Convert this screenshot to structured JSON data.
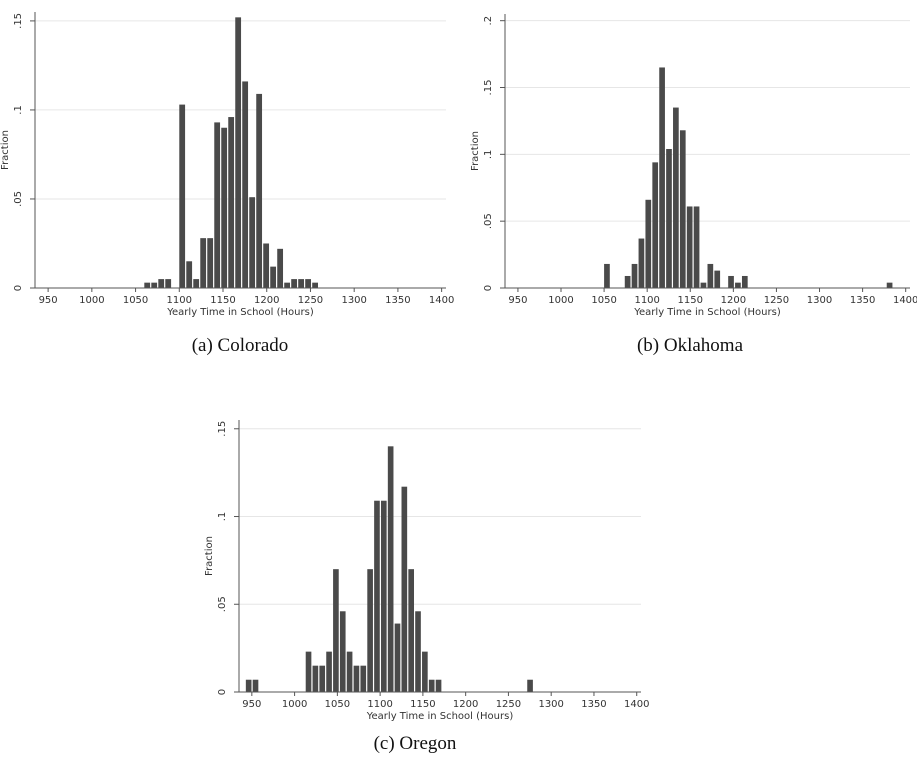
{
  "colors": {
    "bar": "#4a4a4a",
    "grid": "#e6e6e6",
    "axis": "#555555",
    "text": "#333333"
  },
  "chart_data": [
    {
      "type": "bar",
      "caption": "(a) Colorado",
      "xlabel": "Yearly Time in School (Hours)",
      "ylabel": "Fraction",
      "xlim": [
        935,
        1405
      ],
      "ylim": [
        0,
        0.155
      ],
      "xticks": [
        "950",
        "1000",
        "1050",
        "1100",
        "1150",
        "1200",
        "1250",
        "1300",
        "1350",
        "1400"
      ],
      "yticks": [
        "0",
        ".05",
        ".1",
        ".15"
      ],
      "grid": true,
      "bin_width": 8,
      "bins": [
        [
          1060,
          0.003
        ],
        [
          1068,
          0.003
        ],
        [
          1076,
          0.005
        ],
        [
          1084,
          0.005
        ],
        [
          1100,
          0.103
        ],
        [
          1108,
          0.015
        ],
        [
          1116,
          0.005
        ],
        [
          1124,
          0.028
        ],
        [
          1132,
          0.028
        ],
        [
          1140,
          0.093
        ],
        [
          1148,
          0.09
        ],
        [
          1156,
          0.096
        ],
        [
          1164,
          0.152
        ],
        [
          1172,
          0.116
        ],
        [
          1180,
          0.051
        ],
        [
          1188,
          0.109
        ],
        [
          1196,
          0.025
        ],
        [
          1204,
          0.012
        ],
        [
          1212,
          0.022
        ],
        [
          1220,
          0.003
        ],
        [
          1228,
          0.005
        ],
        [
          1236,
          0.005
        ],
        [
          1244,
          0.005
        ],
        [
          1252,
          0.003
        ]
      ]
    },
    {
      "type": "bar",
      "caption": "(b) Oklahoma",
      "xlabel": "Yearly Time in School (Hours)",
      "ylabel": "Fraction",
      "xlim": [
        935,
        1405
      ],
      "ylim": [
        0,
        0.205
      ],
      "xticks": [
        "950",
        "1000",
        "1050",
        "1100",
        "1150",
        "1200",
        "1250",
        "1300",
        "1350",
        "1400"
      ],
      "yticks": [
        "0",
        ".05",
        ".1",
        ".15",
        ".2"
      ],
      "grid": true,
      "bin_width": 8,
      "bins": [
        [
          1050,
          0.018
        ],
        [
          1074,
          0.009
        ],
        [
          1082,
          0.018
        ],
        [
          1090,
          0.037
        ],
        [
          1098,
          0.066
        ],
        [
          1106,
          0.094
        ],
        [
          1114,
          0.165
        ],
        [
          1122,
          0.104
        ],
        [
          1130,
          0.135
        ],
        [
          1138,
          0.118
        ],
        [
          1146,
          0.061
        ],
        [
          1154,
          0.061
        ],
        [
          1162,
          0.004
        ],
        [
          1170,
          0.018
        ],
        [
          1178,
          0.013
        ],
        [
          1194,
          0.009
        ],
        [
          1202,
          0.004
        ],
        [
          1210,
          0.009
        ],
        [
          1378,
          0.004
        ]
      ]
    },
    {
      "type": "bar",
      "caption": "(c) Oregon",
      "xlabel": "Yearly Time in School (Hours)",
      "ylabel": "Fraction",
      "xlim": [
        935,
        1405
      ],
      "ylim": [
        0,
        0.155
      ],
      "xticks": [
        "950",
        "1000",
        "1050",
        "1100",
        "1150",
        "1200",
        "1250",
        "1300",
        "1350",
        "1400"
      ],
      "yticks": [
        "0",
        ".05",
        ".1",
        ".15"
      ],
      "grid": true,
      "bin_width": 8,
      "bins": [
        [
          943,
          0.007
        ],
        [
          951,
          0.007
        ],
        [
          1013,
          0.023
        ],
        [
          1021,
          0.015
        ],
        [
          1029,
          0.015
        ],
        [
          1037,
          0.023
        ],
        [
          1045,
          0.07
        ],
        [
          1053,
          0.046
        ],
        [
          1061,
          0.023
        ],
        [
          1069,
          0.015
        ],
        [
          1077,
          0.015
        ],
        [
          1085,
          0.07
        ],
        [
          1093,
          0.109
        ],
        [
          1101,
          0.109
        ],
        [
          1109,
          0.14
        ],
        [
          1117,
          0.039
        ],
        [
          1125,
          0.117
        ],
        [
          1133,
          0.07
        ],
        [
          1141,
          0.046
        ],
        [
          1149,
          0.023
        ],
        [
          1157,
          0.007
        ],
        [
          1165,
          0.007
        ],
        [
          1272,
          0.007
        ]
      ]
    }
  ]
}
